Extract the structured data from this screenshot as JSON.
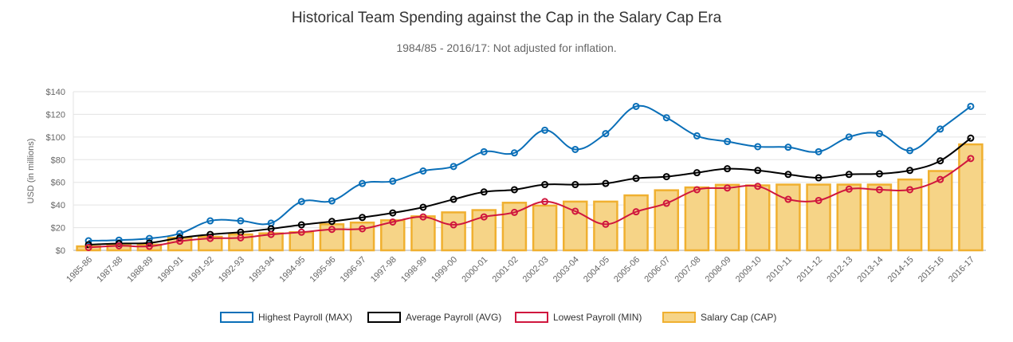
{
  "chart_data": {
    "type": "bar+line",
    "title": "Historical Team Spending against the Cap in the Salary Cap Era",
    "subtitle": "1984/85 - 2016/17: Not adjusted for inflation.",
    "ylabel": "USD (in millions)",
    "ylim": [
      0,
      140
    ],
    "yticks": [
      "$0",
      "$20",
      "$40",
      "$60",
      "$80",
      "$100",
      "$120",
      "$140"
    ],
    "ytick_values": [
      0,
      20,
      40,
      60,
      80,
      100,
      120,
      140
    ],
    "grid": true,
    "legend_position": "bottom",
    "categories": [
      "1985-86",
      "1987-88",
      "1988-89",
      "1990-91",
      "1991-92",
      "1992-93",
      "1993-94",
      "1994-95",
      "1995-96",
      "1996-97",
      "1997-98",
      "1998-99",
      "1999-00",
      "2000-01",
      "2001-02",
      "2002-03",
      "2003-04",
      "2004-05",
      "2005-06",
      "2006-07",
      "2007-08",
      "2008-09",
      "2009-10",
      "2010-11",
      "2011-12",
      "2012-13",
      "2013-14",
      "2014-15",
      "2015-16",
      "2016-17"
    ],
    "series": [
      {
        "name": "Highest Payroll (MAX)",
        "type": "line",
        "color": "#0a6fb8",
        "values": [
          8.4,
          9,
          10.5,
          14.8,
          26,
          26,
          24,
          43,
          43.6,
          59,
          61,
          70,
          74,
          87,
          86,
          106,
          89,
          103,
          127,
          117,
          101,
          96,
          91.5,
          91,
          87,
          100,
          103,
          88,
          107,
          127
        ]
      },
      {
        "name": "Average Payroll (AVG)",
        "type": "line",
        "color": "#000000",
        "values": [
          5,
          6,
          6.5,
          11,
          14,
          16,
          19,
          22.5,
          25.5,
          29,
          33,
          38,
          45,
          51.5,
          53.5,
          58,
          58,
          59,
          63.5,
          65,
          68.5,
          72,
          70.5,
          67,
          64,
          67,
          67.5,
          70.5,
          79,
          99
        ]
      },
      {
        "name": "Lowest Payroll (MIN)",
        "type": "line",
        "color": "#d0173e",
        "values": [
          2.5,
          4,
          3.5,
          8,
          10.5,
          11,
          14,
          16,
          18.5,
          19,
          25,
          29.5,
          22.5,
          29.5,
          33.5,
          43,
          34.5,
          23,
          34,
          41.5,
          53.5,
          55,
          56.5,
          45,
          44,
          54,
          53.5,
          53.5,
          62.5,
          81
        ]
      },
      {
        "name": "Salary Cap (CAP)",
        "type": "bar",
        "color": "#f0b030",
        "fill": "#f6d487",
        "values": [
          3.5,
          4.5,
          5,
          11,
          12,
          14,
          15,
          16,
          23,
          24.5,
          26.5,
          30,
          33.5,
          35.5,
          42,
          39.5,
          43,
          43,
          48.5,
          53,
          55.5,
          57.8,
          57.3,
          58,
          58,
          58,
          58,
          62.5,
          70,
          93.5
        ]
      }
    ]
  }
}
